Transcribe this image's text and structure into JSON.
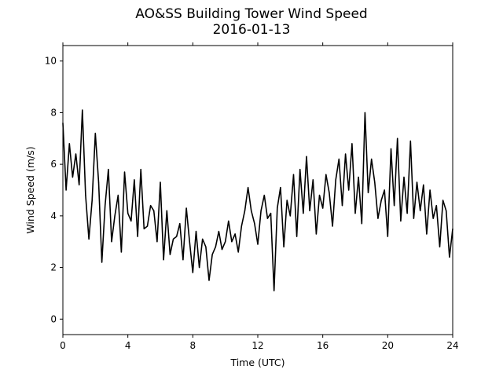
{
  "chart_data": {
    "type": "line",
    "title": "AO&SS Building Tower Wind Speed",
    "subtitle": "2016-01-13",
    "xlabel": "Time (UTC)",
    "ylabel": "Wind Speed (m/s)",
    "xlim": [
      0,
      24
    ],
    "ylim": [
      -0.6,
      10.6
    ],
    "xticks": [
      0,
      4,
      8,
      12,
      16,
      20,
      24
    ],
    "yticks": [
      0,
      2,
      4,
      6,
      8,
      10
    ],
    "grid": false,
    "legend": "none",
    "line_color": "#000000",
    "series": [
      {
        "x": [
          0.0,
          0.2,
          0.4,
          0.6,
          0.8,
          1.0,
          1.2,
          1.4,
          1.6,
          1.8,
          2.0,
          2.2,
          2.4,
          2.6,
          2.8,
          3.0,
          3.2,
          3.4,
          3.6,
          3.8,
          4.0,
          4.2,
          4.4,
          4.6,
          4.8,
          5.0,
          5.2,
          5.4,
          5.6,
          5.8,
          6.0,
          6.2,
          6.4,
          6.6,
          6.8,
          7.0,
          7.2,
          7.4,
          7.6,
          7.8,
          8.0,
          8.2,
          8.4,
          8.6,
          8.8,
          9.0,
          9.2,
          9.4,
          9.6,
          9.8,
          10.0,
          10.2,
          10.4,
          10.6,
          10.8,
          11.0,
          11.2,
          11.4,
          11.6,
          11.8,
          12.0,
          12.2,
          12.4,
          12.6,
          12.8,
          13.0,
          13.2,
          13.4,
          13.6,
          13.8,
          14.0,
          14.2,
          14.4,
          14.6,
          14.8,
          15.0,
          15.2,
          15.4,
          15.6,
          15.8,
          16.0,
          16.2,
          16.4,
          16.6,
          16.8,
          17.0,
          17.2,
          17.4,
          17.6,
          17.8,
          18.0,
          18.2,
          18.4,
          18.6,
          18.8,
          19.0,
          19.2,
          19.4,
          19.6,
          19.8,
          20.0,
          20.2,
          20.4,
          20.6,
          20.8,
          21.0,
          21.2,
          21.4,
          21.6,
          21.8,
          22.0,
          22.2,
          22.4,
          22.6,
          22.8,
          23.0,
          23.2,
          23.4,
          23.6,
          23.8,
          24.0
        ],
        "values": [
          7.6,
          5.0,
          6.8,
          5.5,
          6.4,
          5.2,
          8.1,
          4.8,
          3.1,
          4.6,
          7.2,
          5.3,
          2.2,
          4.4,
          5.8,
          3.0,
          4.0,
          4.8,
          2.6,
          5.7,
          4.1,
          3.8,
          5.4,
          3.2,
          5.8,
          3.5,
          3.6,
          4.4,
          4.2,
          3.0,
          5.3,
          2.3,
          4.2,
          2.5,
          3.1,
          3.2,
          3.7,
          2.3,
          4.3,
          3.0,
          1.8,
          3.4,
          2.0,
          3.1,
          2.8,
          1.5,
          2.5,
          2.8,
          3.4,
          2.7,
          3.0,
          3.8,
          3.0,
          3.3,
          2.6,
          3.6,
          4.2,
          5.1,
          4.2,
          3.7,
          2.9,
          4.2,
          4.8,
          3.9,
          4.1,
          1.1,
          4.3,
          5.1,
          2.8,
          4.6,
          4.0,
          5.6,
          3.2,
          5.8,
          4.1,
          6.3,
          4.2,
          5.4,
          3.3,
          4.8,
          4.3,
          5.6,
          4.9,
          3.6,
          5.4,
          6.2,
          4.4,
          6.4,
          5.0,
          6.8,
          4.1,
          5.5,
          3.7,
          8.0,
          4.9,
          6.2,
          5.3,
          3.9,
          4.6,
          5.0,
          3.2,
          6.6,
          4.4,
          7.0,
          3.8,
          5.5,
          4.1,
          6.9,
          3.9,
          5.3,
          4.2,
          5.2,
          3.3,
          5.0,
          3.9,
          4.4,
          2.8,
          4.6,
          4.2,
          2.4,
          3.5
        ]
      }
    ]
  }
}
